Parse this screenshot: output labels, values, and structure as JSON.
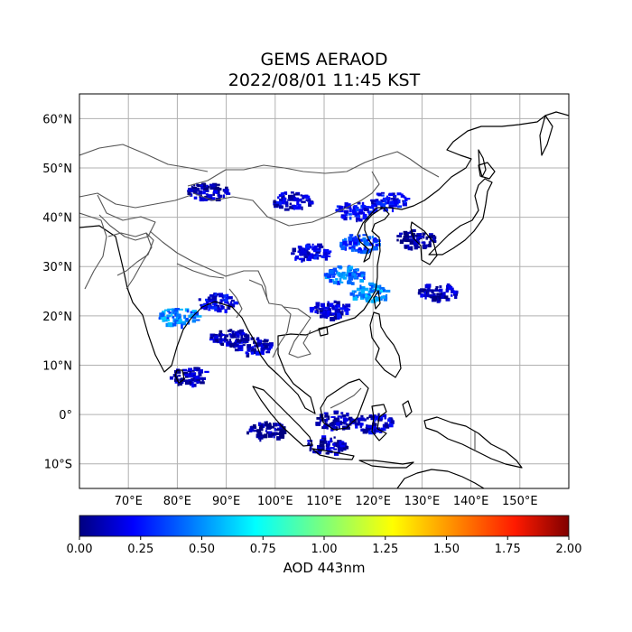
{
  "title": "GEMS AERAOD",
  "subtitle": "2022/08/01 11:45 KST",
  "map": {
    "lon_range": [
      60,
      160
    ],
    "lat_range": [
      -15,
      65
    ],
    "lon_ticks": [
      "70°E",
      "80°E",
      "90°E",
      "100°E",
      "110°E",
      "120°E",
      "130°E",
      "140°E",
      "150°E"
    ],
    "lat_ticks": [
      "60°N",
      "50°N",
      "40°N",
      "30°N",
      "20°N",
      "10°N",
      "0°",
      "10°S"
    ],
    "gridlines": true,
    "coastline_color": "#000000",
    "border_color": "#555555"
  },
  "colorbar": {
    "label": "AOD 443nm",
    "ticks": [
      "0.00",
      "0.25",
      "0.50",
      "0.75",
      "1.00",
      "1.25",
      "1.50",
      "1.75",
      "2.00"
    ],
    "range": [
      0,
      2
    ],
    "colormap": "jet"
  },
  "aod_regions": [
    {
      "name": "mongolia-west",
      "lon": 86,
      "lat": 45.5,
      "value": 0.1
    },
    {
      "name": "mongolia-central",
      "lon": 103,
      "lat": 43.5,
      "value": 0.15
    },
    {
      "name": "inner-mongolia",
      "lon": 116,
      "lat": 41.5,
      "value": 0.25
    },
    {
      "name": "northeast-china",
      "lon": 123,
      "lat": 43.5,
      "value": 0.2
    },
    {
      "name": "korea",
      "lon": 128.5,
      "lat": 35.8,
      "value": 0.05
    },
    {
      "name": "sichuan",
      "lon": 107,
      "lat": 33,
      "value": 0.2
    },
    {
      "name": "east-china",
      "lon": 114,
      "lat": 28.5,
      "value": 0.45
    },
    {
      "name": "north-china-plain",
      "lon": 117,
      "lat": 35,
      "value": 0.35
    },
    {
      "name": "taiwan-strait",
      "lon": 119,
      "lat": 25,
      "value": 0.55
    },
    {
      "name": "south-china",
      "lon": 111,
      "lat": 21.5,
      "value": 0.15
    },
    {
      "name": "bay-of-bengal",
      "lon": 90,
      "lat": 16,
      "value": 0.1
    },
    {
      "name": "central-india",
      "lon": 80,
      "lat": 20,
      "value": 0.5
    },
    {
      "name": "east-india",
      "lon": 88,
      "lat": 23,
      "value": 0.2
    },
    {
      "name": "andaman-sea",
      "lon": 95,
      "lat": 14,
      "value": 0.15
    },
    {
      "name": "sumatra",
      "lon": 98,
      "lat": -3,
      "value": 0.05
    },
    {
      "name": "borneo-west",
      "lon": 112,
      "lat": -1,
      "value": 0.1
    },
    {
      "name": "sulawesi-sea",
      "lon": 120,
      "lat": -1.5,
      "value": 0.15
    },
    {
      "name": "java",
      "lon": 110,
      "lat": -6,
      "value": 0.1
    },
    {
      "name": "pacific-west",
      "lon": 133,
      "lat": 25,
      "value": 0.1
    },
    {
      "name": "sri-lanka",
      "lon": 82,
      "lat": 8,
      "value": 0.1
    }
  ]
}
